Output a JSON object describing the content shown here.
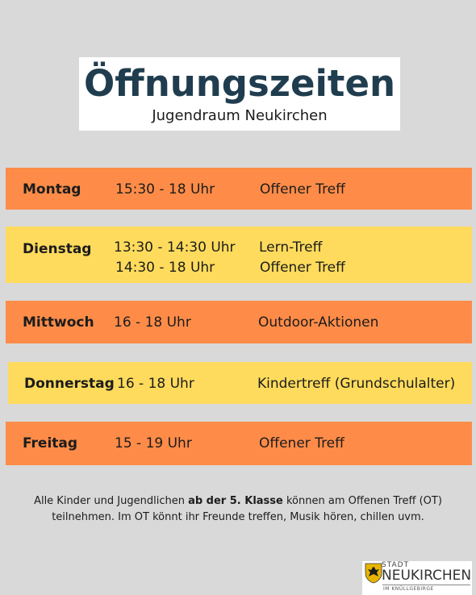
{
  "header": {
    "title": "Öffnungszeiten",
    "subtitle": "Jugendraum Neukirchen"
  },
  "schedule": [
    {
      "day": "Montag",
      "times": [
        "15:30 - 18 Uhr"
      ],
      "activities": [
        "Offener Treff"
      ],
      "color": "#fe8c48"
    },
    {
      "day": "Dienstag",
      "times": [
        "13:30 - 14:30 Uhr",
        "14:30 - 18 Uhr"
      ],
      "activities": [
        "Lern-Treff",
        "Offener Treff"
      ],
      "color": "#fedb5c"
    },
    {
      "day": "Mittwoch",
      "times": [
        "16 - 18 Uhr"
      ],
      "activities": [
        "Outdoor-Aktionen"
      ],
      "color": "#fe8c48"
    },
    {
      "day": "Donnerstag",
      "times": [
        "16 - 18 Uhr"
      ],
      "activities": [
        "Kindertreff (Grundschulalter)"
      ],
      "color": "#fedb5c"
    },
    {
      "day": "Freitag",
      "times": [
        "15 - 19 Uhr"
      ],
      "activities": [
        "Offener Treff"
      ],
      "color": "#fe8c48"
    }
  ],
  "note": {
    "part1": "Alle Kinder und Jugendlichen ",
    "bold": "ab der 5. Klasse",
    "part2": " können am Offenen Treff (OT)",
    "line2": "teilnehmen. Im OT könnt ihr Freunde treffen, Musik hören, chillen uvm."
  },
  "logo": {
    "stadt": "STADT",
    "name": "NEUKIRCHEN",
    "region": "IM KNÜLLGEBIRGE",
    "crest_icon": "city-crest-icon"
  }
}
